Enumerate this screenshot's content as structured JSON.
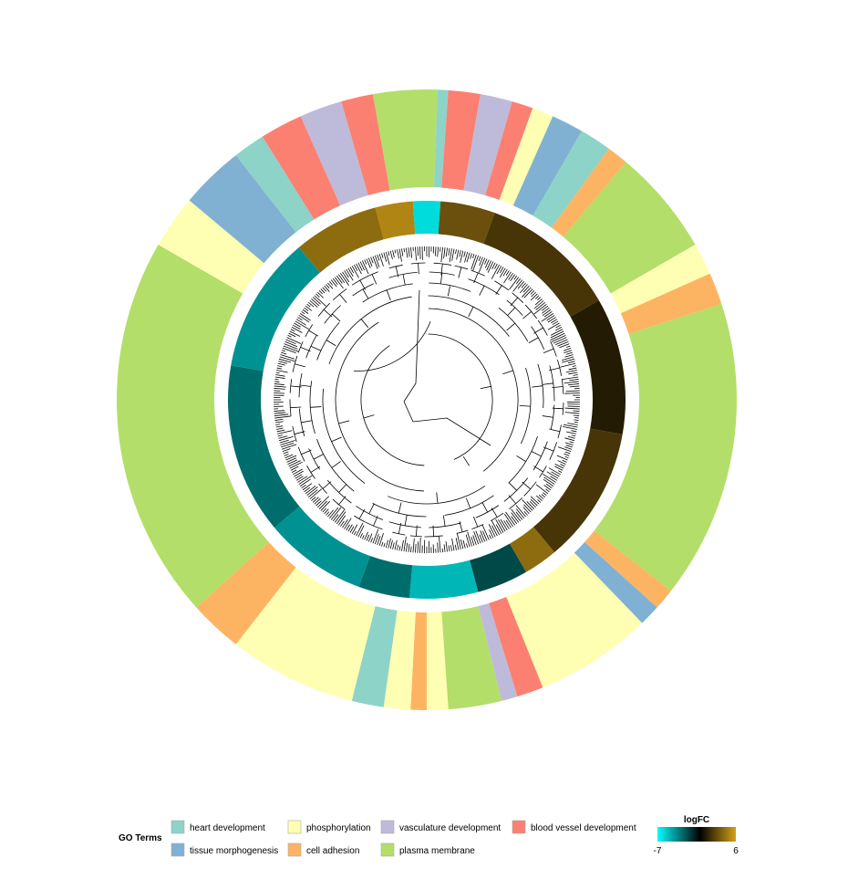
{
  "chart_data": {
    "type": "circular-dendrogram-heatmap",
    "title": "",
    "legend_title": "GO Terms",
    "go_terms": [
      {
        "name": "heart development",
        "color": "#8DD3C7"
      },
      {
        "name": "tissue morphogenesis",
        "color": "#80B1D3"
      },
      {
        "name": "phosphorylation",
        "color": "#FFFFB3"
      },
      {
        "name": "cell adhesion",
        "color": "#FDB462"
      },
      {
        "name": "vasculature development",
        "color": "#BEBADA"
      },
      {
        "name": "plasma membrane",
        "color": "#B3DE69"
      },
      {
        "name": "blood vessel development",
        "color": "#FB8072"
      }
    ],
    "colorbar": {
      "title": "logFC",
      "min": -7,
      "max": 6,
      "min_label": "-7",
      "max_label": "6",
      "colors": [
        "#00FFFF",
        "#000000",
        "#D4A017"
      ]
    },
    "leaf_count": 420,
    "ring_segments": [
      {
        "start_deg": 0,
        "end_deg": 2,
        "term": "plasma membrane"
      },
      {
        "start_deg": 2,
        "end_deg": 4,
        "term": "heart development"
      },
      {
        "start_deg": 4,
        "end_deg": 10,
        "term": "blood vessel development"
      },
      {
        "start_deg": 10,
        "end_deg": 16,
        "term": "vasculature development"
      },
      {
        "start_deg": 16,
        "end_deg": 20,
        "term": "blood vessel development"
      },
      {
        "start_deg": 20,
        "end_deg": 24,
        "term": "phosphorylation"
      },
      {
        "start_deg": 24,
        "end_deg": 30,
        "term": "tissue morphogenesis"
      },
      {
        "start_deg": 30,
        "end_deg": 36,
        "term": "heart development"
      },
      {
        "start_deg": 36,
        "end_deg": 40,
        "term": "cell adhesion"
      },
      {
        "start_deg": 40,
        "end_deg": 60,
        "term": "plasma membrane"
      },
      {
        "start_deg": 60,
        "end_deg": 66,
        "term": "phosphorylation"
      },
      {
        "start_deg": 66,
        "end_deg": 72,
        "term": "cell adhesion"
      },
      {
        "start_deg": 72,
        "end_deg": 128,
        "term": "plasma membrane"
      },
      {
        "start_deg": 128,
        "end_deg": 132,
        "term": "cell adhesion"
      },
      {
        "start_deg": 132,
        "end_deg": 136,
        "term": "tissue morphogenesis"
      },
      {
        "start_deg": 136,
        "end_deg": 158,
        "term": "phosphorylation"
      },
      {
        "start_deg": 158,
        "end_deg": 163,
        "term": "blood vessel development"
      },
      {
        "start_deg": 163,
        "end_deg": 166,
        "term": "vasculature development"
      },
      {
        "start_deg": 166,
        "end_deg": 176,
        "term": "plasma membrane"
      },
      {
        "start_deg": 176,
        "end_deg": 180,
        "term": "phosphorylation"
      },
      {
        "start_deg": 180,
        "end_deg": 183,
        "term": "cell adhesion"
      },
      {
        "start_deg": 183,
        "end_deg": 188,
        "term": "phosphorylation"
      },
      {
        "start_deg": 188,
        "end_deg": 194,
        "term": "heart development"
      },
      {
        "start_deg": 194,
        "end_deg": 218,
        "term": "phosphorylation"
      },
      {
        "start_deg": 218,
        "end_deg": 228,
        "term": "cell adhesion"
      },
      {
        "start_deg": 228,
        "end_deg": 300,
        "term": "plasma membrane"
      },
      {
        "start_deg": 300,
        "end_deg": 310,
        "term": "phosphorylation"
      },
      {
        "start_deg": 310,
        "end_deg": 322,
        "term": "tissue morphogenesis"
      },
      {
        "start_deg": 322,
        "end_deg": 328,
        "term": "heart development"
      },
      {
        "start_deg": 328,
        "end_deg": 336,
        "term": "blood vessel development"
      },
      {
        "start_deg": 336,
        "end_deg": 344,
        "term": "vasculature development"
      },
      {
        "start_deg": 344,
        "end_deg": 350,
        "term": "blood vessel development"
      },
      {
        "start_deg": 350,
        "end_deg": 360,
        "term": "plasma membrane"
      }
    ],
    "heat_segments": [
      {
        "start_deg": 0,
        "end_deg": 4,
        "logFC": -6
      },
      {
        "start_deg": 4,
        "end_deg": 20,
        "logFC": 3
      },
      {
        "start_deg": 20,
        "end_deg": 60,
        "logFC": 2
      },
      {
        "start_deg": 60,
        "end_deg": 100,
        "logFC": 1
      },
      {
        "start_deg": 100,
        "end_deg": 140,
        "logFC": 2
      },
      {
        "start_deg": 140,
        "end_deg": 150,
        "logFC": 4
      },
      {
        "start_deg": 150,
        "end_deg": 165,
        "logFC": -2
      },
      {
        "start_deg": 165,
        "end_deg": 185,
        "logFC": -5
      },
      {
        "start_deg": 185,
        "end_deg": 200,
        "logFC": -3
      },
      {
        "start_deg": 200,
        "end_deg": 230,
        "logFC": -4
      },
      {
        "start_deg": 230,
        "end_deg": 280,
        "logFC": -3
      },
      {
        "start_deg": 280,
        "end_deg": 320,
        "logFC": -4
      },
      {
        "start_deg": 320,
        "end_deg": 345,
        "logFC": 4
      },
      {
        "start_deg": 345,
        "end_deg": 356,
        "logFC": 5
      },
      {
        "start_deg": 356,
        "end_deg": 360,
        "logFC": -6
      }
    ]
  }
}
